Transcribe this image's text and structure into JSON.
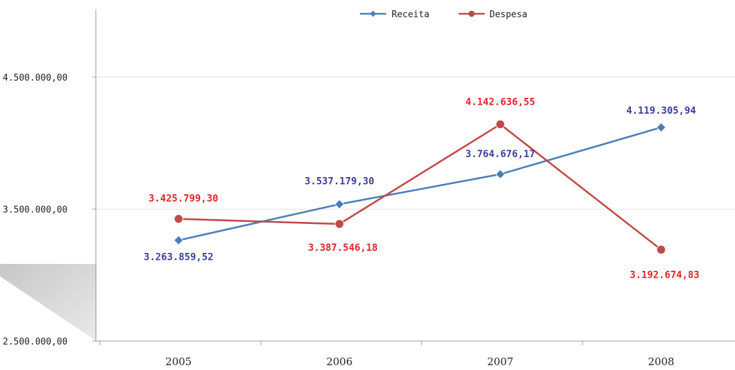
{
  "chart_data": {
    "type": "line",
    "title": "",
    "xlabel": "",
    "ylabel": "",
    "categories": [
      "2005",
      "2006",
      "2007",
      "2008"
    ],
    "ylim": [
      2500000,
      5000000
    ],
    "yticks": [
      2500000,
      3500000,
      4500000
    ],
    "ytick_labels": [
      "2.500.000,00",
      "3.500.000,00",
      "4.500.000,00"
    ],
    "grid": true,
    "legend_position": "top-center",
    "series": [
      {
        "name": "Receita",
        "color": "#4a7ebb",
        "label_color": "#3b3f9c",
        "marker": "diamond",
        "values": [
          3263859.52,
          3537179.3,
          3764676.17,
          4119305.94
        ],
        "labels": [
          "3.263.859,52",
          "3.537.179,30",
          "3.764.676,17",
          "4.119.305,94"
        ]
      },
      {
        "name": "Despesa",
        "color": "#be4b48",
        "label_color": "#e0262a",
        "marker": "circle",
        "values": [
          3425799.3,
          3387546.18,
          4142636.55,
          3192674.83
        ],
        "labels": [
          "3.425.799,30",
          "3.387.546,18",
          "4.142.636,55",
          "3.192.674,83"
        ]
      }
    ]
  }
}
